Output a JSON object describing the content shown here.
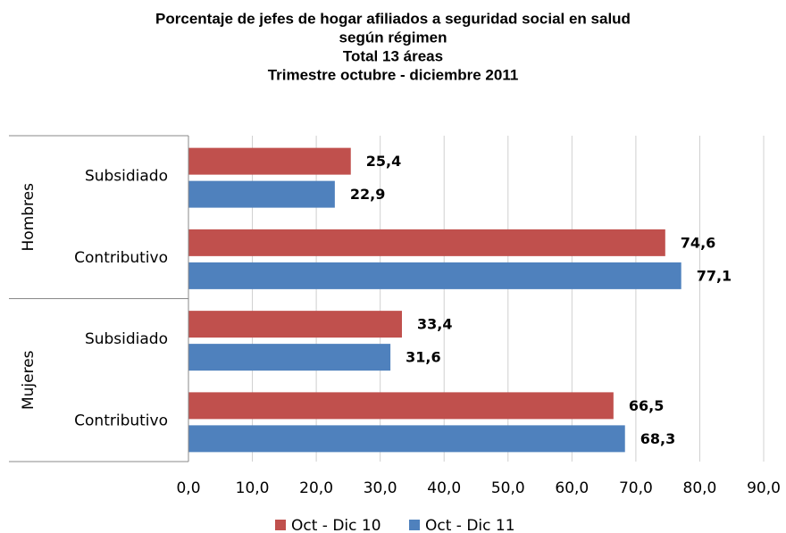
{
  "chart_data": {
    "type": "hbar",
    "title": [
      "Porcentaje de jefes de hogar afiliados a seguridad social en salud",
      "según régimen",
      "Total 13 áreas",
      "Trimestre octubre - diciembre 2011"
    ],
    "groups": [
      {
        "label": "Hombres",
        "categories": [
          "Subsidiado",
          "Contributivo"
        ]
      },
      {
        "label": "Mujeres",
        "categories": [
          "Subsidiado",
          "Contributivo"
        ]
      }
    ],
    "series": [
      {
        "name": "Oct - Dic 10",
        "color": "#c0504d",
        "values": [
          25.4,
          74.6,
          33.4,
          66.5
        ],
        "value_labels": [
          "25,4",
          "74,6",
          "33,4",
          "66,5"
        ]
      },
      {
        "name": "Oct - Dic 11",
        "color": "#4f81bd",
        "values": [
          22.9,
          77.1,
          31.6,
          68.3
        ],
        "value_labels": [
          "22,9",
          "77,1",
          "31,6",
          "68,3"
        ]
      }
    ],
    "xlim": [
      0,
      90
    ],
    "xticks": [
      {
        "value": 0,
        "label": "0,0"
      },
      {
        "value": 10,
        "label": "10,0"
      },
      {
        "value": 20,
        "label": "20,0"
      },
      {
        "value": 30,
        "label": "30,0"
      },
      {
        "value": 40,
        "label": "40,0"
      },
      {
        "value": 50,
        "label": "50,0"
      },
      {
        "value": 60,
        "label": "60,0"
      },
      {
        "value": 70,
        "label": "70,0"
      },
      {
        "value": 80,
        "label": "80,0"
      },
      {
        "value": 90,
        "label": "90,0"
      }
    ],
    "grid": true,
    "legend": "bottom"
  }
}
